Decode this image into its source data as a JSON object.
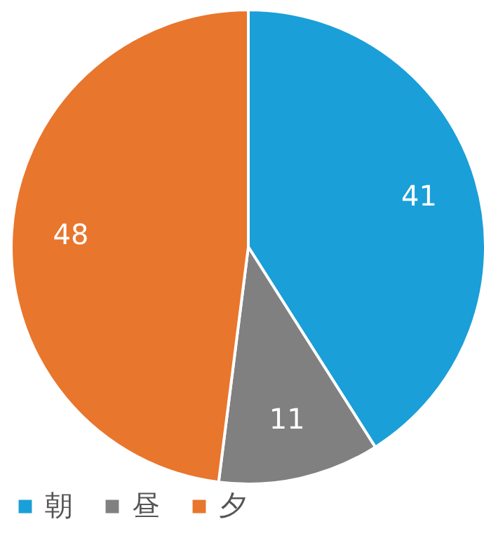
{
  "chart_data": {
    "type": "pie",
    "categories": [
      "朝",
      "昼",
      "夕"
    ],
    "values": [
      41,
      11,
      48
    ],
    "colors": [
      "#1a9fd8",
      "#808080",
      "#e8762d"
    ],
    "data_labels": true,
    "legend": "bottom"
  }
}
